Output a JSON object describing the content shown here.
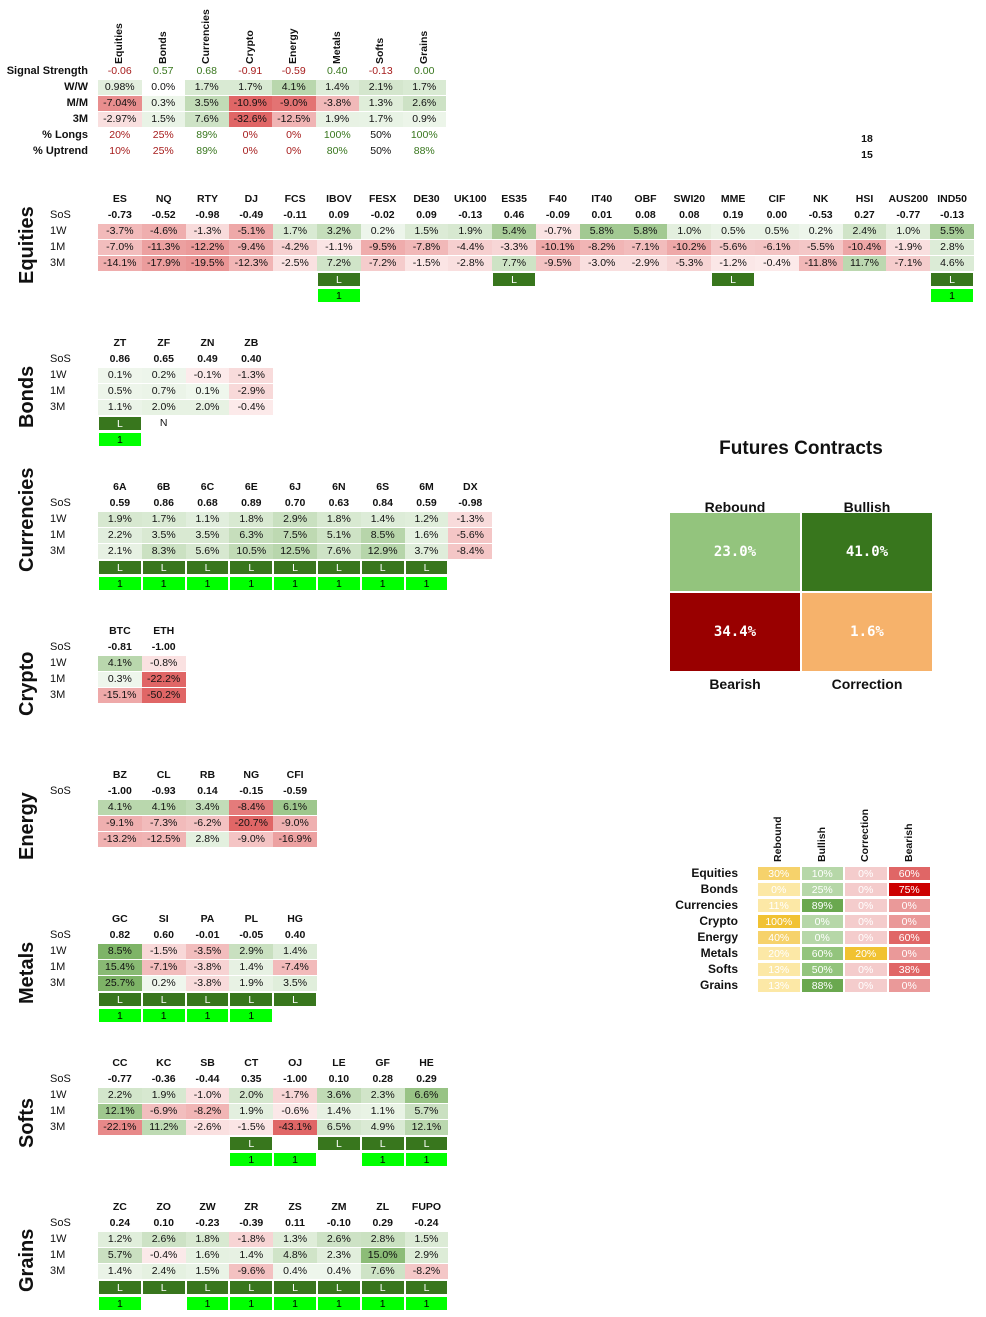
{
  "summary": {
    "headers": [
      "Equities",
      "Bonds",
      "Currencies",
      "Crypto",
      "Energy",
      "Metals",
      "Softs",
      "Grains"
    ],
    "rows": [
      {
        "label": "Signal Strength",
        "values": [
          "-0.06",
          "0.57",
          "0.68",
          "-0.91",
          "-0.59",
          "0.40",
          "-0.13",
          "0.00"
        ]
      },
      {
        "label": "W/W",
        "values": [
          "0.98%",
          "0.0%",
          "1.7%",
          "1.7%",
          "4.1%",
          "1.4%",
          "2.1%",
          "1.7%"
        ]
      },
      {
        "label": "M/M",
        "values": [
          "-7.04%",
          "0.3%",
          "3.5%",
          "-10.9%",
          "-9.0%",
          "-3.8%",
          "1.3%",
          "2.6%"
        ]
      },
      {
        "label": "3M",
        "values": [
          "-2.97%",
          "1.5%",
          "7.6%",
          "-32.6%",
          "-12.5%",
          "1.9%",
          "1.7%",
          "0.9%"
        ]
      },
      {
        "label": "% Longs",
        "values": [
          "20%",
          "25%",
          "89%",
          "0%",
          "0%",
          "100%",
          "50%",
          "100%"
        ]
      },
      {
        "label": "% Uptrend",
        "values": [
          "10%",
          "25%",
          "89%",
          "0%",
          "0%",
          "80%",
          "50%",
          "88%"
        ]
      }
    ],
    "side_numbers": [
      "18",
      "15"
    ]
  },
  "sections": [
    {
      "name": "Equities",
      "labels": [
        "SoS",
        "1W",
        "1M",
        "3M"
      ],
      "symbols": [
        "ES",
        "NQ",
        "RTY",
        "DJ",
        "FCS",
        "IBOV",
        "FESX",
        "DE30",
        "UK100",
        "ES35",
        "F40",
        "IT40",
        "OBF",
        "SWI20",
        "MME",
        "CIF",
        "NK",
        "HSI",
        "AUS200",
        "IND50"
      ],
      "sos": [
        "-0.73",
        "-0.52",
        "-0.98",
        "-0.49",
        "-0.11",
        "0.09",
        "-0.02",
        "0.09",
        "-0.13",
        "0.46",
        "-0.09",
        "0.01",
        "0.08",
        "0.08",
        "0.19",
        "0.00",
        "-0.53",
        "0.27",
        "-0.77",
        "-0.13"
      ],
      "w1": [
        "-3.7%",
        "-4.6%",
        "-1.3%",
        "-5.1%",
        "1.7%",
        "3.2%",
        "0.2%",
        "1.5%",
        "1.9%",
        "5.4%",
        "-0.7%",
        "5.8%",
        "5.8%",
        "1.0%",
        "0.5%",
        "0.5%",
        "0.2%",
        "2.4%",
        "1.0%",
        "5.5%"
      ],
      "m1": [
        "-7.0%",
        "-11.3%",
        "-12.2%",
        "-9.4%",
        "-4.2%",
        "-1.1%",
        "-9.5%",
        "-7.8%",
        "-4.4%",
        "-3.3%",
        "-10.1%",
        "-8.2%",
        "-7.1%",
        "-10.2%",
        "-5.6%",
        "-6.1%",
        "-5.5%",
        "-10.4%",
        "-1.9%",
        "2.8%"
      ],
      "m3": [
        "-14.1%",
        "-17.9%",
        "-19.5%",
        "-12.3%",
        "-2.5%",
        "7.2%",
        "-7.2%",
        "-1.5%",
        "-2.8%",
        "7.7%",
        "-9.5%",
        "-3.0%",
        "-2.9%",
        "-5.3%",
        "-1.2%",
        "-0.4%",
        "-11.8%",
        "11.7%",
        "-7.1%",
        "4.6%"
      ],
      "pos": [
        "",
        "",
        "",
        "",
        "",
        "L",
        "",
        "",
        "",
        "L",
        "",
        "",
        "",
        "",
        "L",
        "",
        "",
        "",
        "",
        "L"
      ],
      "trend": [
        "",
        "",
        "",
        "",
        "",
        "1",
        "",
        "",
        "",
        "",
        "",
        "",
        "",
        "",
        "",
        "",
        "",
        "",
        "",
        "1"
      ]
    },
    {
      "name": "Bonds",
      "labels": [
        "SoS",
        "1W",
        "1M",
        "3M"
      ],
      "symbols": [
        "ZT",
        "ZF",
        "ZN",
        "ZB"
      ],
      "sos": [
        "0.86",
        "0.65",
        "0.49",
        "0.40"
      ],
      "w1": [
        "0.1%",
        "0.2%",
        "-0.1%",
        "-1.3%"
      ],
      "m1": [
        "0.5%",
        "0.7%",
        "0.1%",
        "-2.9%"
      ],
      "m3": [
        "1.1%",
        "2.0%",
        "2.0%",
        "-0.4%"
      ],
      "pos": [
        "L",
        "N",
        "",
        ""
      ],
      "trend": [
        "1",
        "",
        "",
        ""
      ]
    },
    {
      "name": "Currencies",
      "labels": [
        "SoS",
        "1W",
        "1M",
        "3M"
      ],
      "symbols": [
        "6A",
        "6B",
        "6C",
        "6E",
        "6J",
        "6N",
        "6S",
        "6M",
        "DX"
      ],
      "sos": [
        "0.59",
        "0.86",
        "0.68",
        "0.89",
        "0.70",
        "0.63",
        "0.84",
        "0.59",
        "-0.98"
      ],
      "w1": [
        "1.9%",
        "1.7%",
        "1.1%",
        "1.8%",
        "2.9%",
        "1.8%",
        "1.4%",
        "1.2%",
        "-1.3%"
      ],
      "m1": [
        "2.2%",
        "3.5%",
        "3.5%",
        "6.3%",
        "7.5%",
        "5.1%",
        "8.5%",
        "1.6%",
        "-5.6%"
      ],
      "m3": [
        "2.1%",
        "8.3%",
        "5.6%",
        "10.5%",
        "12.5%",
        "7.6%",
        "12.9%",
        "3.7%",
        "-8.4%"
      ],
      "pos": [
        "L",
        "L",
        "L",
        "L",
        "L",
        "L",
        "L",
        "L",
        ""
      ],
      "trend": [
        "1",
        "1",
        "1",
        "1",
        "1",
        "1",
        "1",
        "1",
        ""
      ]
    },
    {
      "name": "Crypto",
      "labels": [
        "SoS",
        "1W",
        "1M",
        "3M"
      ],
      "symbols": [
        "BTC",
        "ETH"
      ],
      "sos": [
        "-0.81",
        "-1.00"
      ],
      "w1": [
        "4.1%",
        "-0.8%"
      ],
      "m1": [
        "0.3%",
        "-22.2%"
      ],
      "m3": [
        "-15.1%",
        "-50.2%"
      ],
      "pos": [
        "",
        ""
      ],
      "trend": [
        "",
        ""
      ]
    },
    {
      "name": "Energy",
      "labels": [
        "SoS",
        "",
        "",
        ""
      ],
      "symbols": [
        "BZ",
        "CL",
        "RB",
        "NG",
        "CFI"
      ],
      "sos": [
        "-1.00",
        "-0.93",
        "0.14",
        "-0.15",
        "-0.59"
      ],
      "w1": [
        "4.1%",
        "4.1%",
        "3.4%",
        "-8.4%",
        "6.1%"
      ],
      "m1": [
        "-9.1%",
        "-7.3%",
        "-6.2%",
        "-20.7%",
        "-9.0%"
      ],
      "m3": [
        "-13.2%",
        "-12.5%",
        "2.8%",
        "-9.0%",
        "-16.9%"
      ],
      "pos": [
        "",
        "",
        "",
        "",
        ""
      ],
      "trend": [
        "",
        "",
        "",
        "",
        ""
      ]
    },
    {
      "name": "Metals",
      "labels": [
        "SoS",
        "1W",
        "1M",
        "3M"
      ],
      "symbols": [
        "GC",
        "SI",
        "PA",
        "PL",
        "HG"
      ],
      "sos": [
        "0.82",
        "0.60",
        "-0.01",
        "-0.05",
        "0.40"
      ],
      "w1": [
        "8.5%",
        "-1.5%",
        "-3.5%",
        "2.9%",
        "1.4%"
      ],
      "m1": [
        "15.4%",
        "-7.1%",
        "-3.8%",
        "1.4%",
        "-7.4%"
      ],
      "m3": [
        "25.7%",
        "0.2%",
        "-3.8%",
        "1.9%",
        "3.5%"
      ],
      "pos": [
        "L",
        "L",
        "L",
        "L",
        "L"
      ],
      "trend": [
        "1",
        "1",
        "1",
        "1",
        ""
      ]
    },
    {
      "name": "Softs",
      "labels": [
        "SoS",
        "1W",
        "1M",
        "3M"
      ],
      "symbols": [
        "CC",
        "KC",
        "SB",
        "CT",
        "OJ",
        "LE",
        "GF",
        "HE"
      ],
      "sos": [
        "-0.77",
        "-0.36",
        "-0.44",
        "0.35",
        "-1.00",
        "0.10",
        "0.28",
        "0.29"
      ],
      "w1": [
        "2.2%",
        "1.9%",
        "-1.0%",
        "2.0%",
        "-1.7%",
        "3.6%",
        "2.3%",
        "6.6%"
      ],
      "m1": [
        "12.1%",
        "-6.9%",
        "-8.2%",
        "1.9%",
        "-0.6%",
        "1.4%",
        "1.1%",
        "5.7%"
      ],
      "m3": [
        "-22.1%",
        "11.2%",
        "-2.6%",
        "-1.5%",
        "-43.1%",
        "6.5%",
        "4.9%",
        "12.1%"
      ],
      "pos": [
        "",
        "",
        "",
        "L",
        "",
        "L",
        "L",
        "L"
      ],
      "trend": [
        "",
        "",
        "",
        "1",
        "1",
        "",
        "1",
        "1"
      ]
    },
    {
      "name": "Grains",
      "labels": [
        "SoS",
        "1W",
        "1M",
        "3M"
      ],
      "symbols": [
        "ZC",
        "ZO",
        "ZW",
        "ZR",
        "ZS",
        "ZM",
        "ZL",
        "FUPO"
      ],
      "sos": [
        "0.24",
        "0.10",
        "-0.23",
        "-0.39",
        "0.11",
        "-0.10",
        "0.29",
        "-0.24"
      ],
      "w1": [
        "1.2%",
        "2.6%",
        "1.8%",
        "-1.8%",
        "1.3%",
        "2.6%",
        "2.8%",
        "1.5%"
      ],
      "m1": [
        "5.7%",
        "-0.4%",
        "1.6%",
        "1.4%",
        "4.8%",
        "2.3%",
        "15.0%",
        "2.9%"
      ],
      "m3": [
        "1.4%",
        "2.4%",
        "1.5%",
        "-9.6%",
        "0.4%",
        "0.4%",
        "7.6%",
        "-8.2%"
      ],
      "pos": [
        "L",
        "L",
        "L",
        "L",
        "L",
        "L",
        "L",
        "L"
      ],
      "trend": [
        "1",
        "",
        "1",
        "1",
        "1",
        "1",
        "1",
        "1"
      ]
    }
  ],
  "futures": {
    "title": "Futures Contracts",
    "rebound": {
      "label": "Rebound",
      "value": "23.0%",
      "color": "#93c47d"
    },
    "bullish": {
      "label": "Bullish",
      "value": "41.0%",
      "color": "#38761d"
    },
    "bearish": {
      "label": "Bearish",
      "value": "34.4%",
      "color": "#990000"
    },
    "correction": {
      "label": "Correction",
      "value": "1.6%",
      "color": "#f6b26b"
    }
  },
  "regime_table": {
    "headers": [
      "Rebound",
      "Bullish",
      "Correction",
      "Bearish"
    ],
    "rows": [
      {
        "label": "Equities",
        "values": [
          "30%",
          "10%",
          "0%",
          "60%"
        ]
      },
      {
        "label": "Bonds",
        "values": [
          "0%",
          "25%",
          "0%",
          "75%"
        ]
      },
      {
        "label": "Currencies",
        "values": [
          "11%",
          "89%",
          "0%",
          "0%"
        ]
      },
      {
        "label": "Crypto",
        "values": [
          "100%",
          "0%",
          "0%",
          "0%"
        ]
      },
      {
        "label": "Energy",
        "values": [
          "40%",
          "0%",
          "0%",
          "60%"
        ]
      },
      {
        "label": "Metals",
        "values": [
          "20%",
          "60%",
          "20%",
          "0%"
        ]
      },
      {
        "label": "Softs",
        "values": [
          "13%",
          "50%",
          "0%",
          "38%"
        ]
      },
      {
        "label": "Grains",
        "values": [
          "13%",
          "88%",
          "0%",
          "0%"
        ]
      }
    ]
  }
}
